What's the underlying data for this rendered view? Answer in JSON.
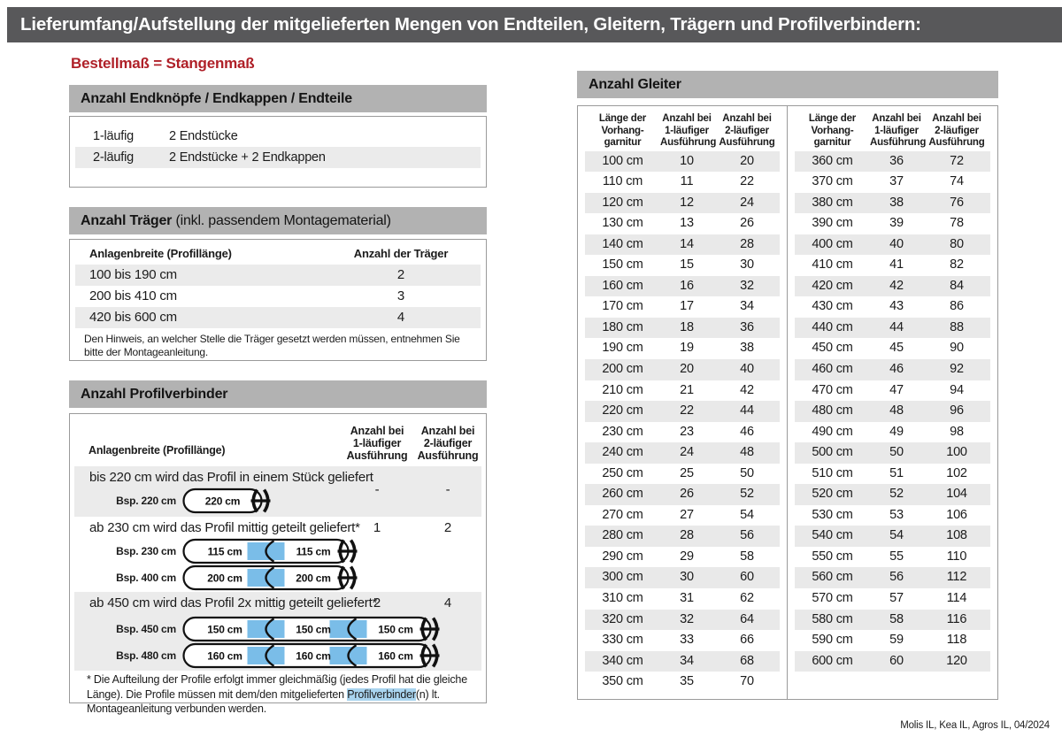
{
  "page": {
    "title": "Lieferumfang/Aufstellung der mitgelieferten Mengen von Endteilen, Gleitern, Trägern und Profilverbindern:",
    "subtitle": "Bestellmaß = Stangenmaß",
    "footer": "Molis IL, Kea IL, Agros IL, 04/2024"
  },
  "colors": {
    "title_bar": "#58585a",
    "section_header": "#b2b2b2",
    "stripe": "#ebebeb",
    "accent_red": "#af2028",
    "connector_blue": "#7abde8",
    "highlight_blue": "#a9d4ef"
  },
  "endteile": {
    "title": "Anzahl Endknöpfe / Endkappen / Endteile",
    "rows": [
      {
        "label": "1-läufig",
        "value": "2 Endstücke"
      },
      {
        "label": "2-läufig",
        "value": "2 Endstücke + 2 Endkappen"
      }
    ]
  },
  "traeger": {
    "title_bold": "Anzahl Träger",
    "title_rest": " (inkl. passendem Montagematerial)",
    "col1": "Anlagenbreite (Profillänge)",
    "col2": "Anzahl der Träger",
    "rows": [
      {
        "range": "100 bis 190 cm",
        "count": "2"
      },
      {
        "range": "200 bis 410 cm",
        "count": "3"
      },
      {
        "range": "420 bis 600 cm",
        "count": "4"
      }
    ],
    "note": "Den Hinweis, an welcher Stelle die Träger gesetzt werden müssen, entnehmen Sie bitte der Montageanleitung."
  },
  "profilverbinder": {
    "title": "Anzahl Profilverbinder",
    "col1": "Anlagenbreite (Profillänge)",
    "col2": [
      "Anzahl bei",
      "1-läufiger",
      "Ausführung"
    ],
    "col3": [
      "Anzahl bei",
      "2-läufiger",
      "Ausführung"
    ],
    "rows": [
      {
        "text": "bis 220 cm wird das Profil in einem Stück geliefert",
        "v1": "-",
        "v2": "-",
        "diagrams": [
          {
            "label": "Bsp. 220 cm",
            "segments": [
              "220 cm"
            ]
          }
        ]
      },
      {
        "text": "ab 230 cm wird das Profil mittig geteilt geliefert*",
        "v1": "1",
        "v2": "2",
        "diagrams": [
          {
            "label": "Bsp. 230 cm",
            "segments": [
              "115 cm",
              "115 cm"
            ]
          },
          {
            "label": "Bsp. 400 cm",
            "segments": [
              "200 cm",
              "200 cm"
            ]
          }
        ]
      },
      {
        "text": "ab 450 cm wird das Profil 2x mittig geteilt geliefert*",
        "v1": "2",
        "v2": "4",
        "diagrams": [
          {
            "label": "Bsp. 450 cm",
            "segments": [
              "150 cm",
              "150 cm",
              "150 cm"
            ]
          },
          {
            "label": "Bsp. 480 cm",
            "segments": [
              "160 cm",
              "160 cm",
              "160 cm"
            ]
          }
        ]
      }
    ],
    "footnote": {
      "before": "* Die Aufteilung der Profile erfolgt immer gleichmäßig (jedes Profil hat die gleiche Länge). Die Profile müssen mit dem/den mitgelieferten ",
      "highlight": "Profilverbinder",
      "after": "(n) lt. Montageanleitung verbunden werden."
    }
  },
  "gleiter": {
    "title": "Anzahl Gleiter",
    "col_headers": [
      [
        "Länge der",
        "Vorhang-",
        "garnitur"
      ],
      [
        "Anzahl bei",
        "1-läufiger",
        "Ausführung"
      ],
      [
        "Anzahl bei",
        "2-läufiger",
        "Ausführung"
      ]
    ],
    "left_rows": [
      [
        "100 cm",
        "10",
        "20"
      ],
      [
        "110 cm",
        "11",
        "22"
      ],
      [
        "120 cm",
        "12",
        "24"
      ],
      [
        "130 cm",
        "13",
        "26"
      ],
      [
        "140 cm",
        "14",
        "28"
      ],
      [
        "150 cm",
        "15",
        "30"
      ],
      [
        "160 cm",
        "16",
        "32"
      ],
      [
        "170 cm",
        "17",
        "34"
      ],
      [
        "180 cm",
        "18",
        "36"
      ],
      [
        "190 cm",
        "19",
        "38"
      ],
      [
        "200 cm",
        "20",
        "40"
      ],
      [
        "210 cm",
        "21",
        "42"
      ],
      [
        "220 cm",
        "22",
        "44"
      ],
      [
        "230 cm",
        "23",
        "46"
      ],
      [
        "240 cm",
        "24",
        "48"
      ],
      [
        "250 cm",
        "25",
        "50"
      ],
      [
        "260 cm",
        "26",
        "52"
      ],
      [
        "270 cm",
        "27",
        "54"
      ],
      [
        "280 cm",
        "28",
        "56"
      ],
      [
        "290 cm",
        "29",
        "58"
      ],
      [
        "300 cm",
        "30",
        "60"
      ],
      [
        "310 cm",
        "31",
        "62"
      ],
      [
        "320 cm",
        "32",
        "64"
      ],
      [
        "330 cm",
        "33",
        "66"
      ],
      [
        "340 cm",
        "34",
        "68"
      ],
      [
        "350 cm",
        "35",
        "70"
      ]
    ],
    "right_rows": [
      [
        "360 cm",
        "36",
        "72"
      ],
      [
        "370 cm",
        "37",
        "74"
      ],
      [
        "380 cm",
        "38",
        "76"
      ],
      [
        "390 cm",
        "39",
        "78"
      ],
      [
        "400 cm",
        "40",
        "80"
      ],
      [
        "410 cm",
        "41",
        "82"
      ],
      [
        "420 cm",
        "42",
        "84"
      ],
      [
        "430 cm",
        "43",
        "86"
      ],
      [
        "440 cm",
        "44",
        "88"
      ],
      [
        "450 cm",
        "45",
        "90"
      ],
      [
        "460 cm",
        "46",
        "92"
      ],
      [
        "470 cm",
        "47",
        "94"
      ],
      [
        "480 cm",
        "48",
        "96"
      ],
      [
        "490 cm",
        "49",
        "98"
      ],
      [
        "500 cm",
        "50",
        "100"
      ],
      [
        "510 cm",
        "51",
        "102"
      ],
      [
        "520 cm",
        "52",
        "104"
      ],
      [
        "530 cm",
        "53",
        "106"
      ],
      [
        "540 cm",
        "54",
        "108"
      ],
      [
        "550 cm",
        "55",
        "110"
      ],
      [
        "560 cm",
        "56",
        "112"
      ],
      [
        "570 cm",
        "57",
        "114"
      ],
      [
        "580 cm",
        "58",
        "116"
      ],
      [
        "590 cm",
        "59",
        "118"
      ],
      [
        "600 cm",
        "60",
        "120"
      ]
    ]
  }
}
